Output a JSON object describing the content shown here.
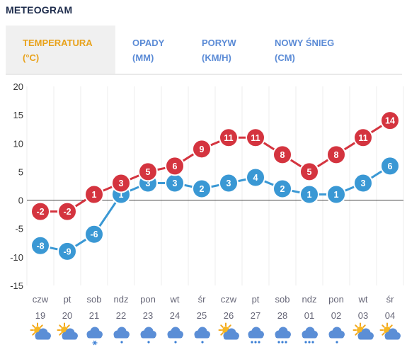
{
  "title": "METEOGRAM",
  "tabs": [
    {
      "label": "TEMPERATURA",
      "unit": "(°C)",
      "active": true
    },
    {
      "label": "OPADY",
      "unit": "(MM)",
      "active": false
    },
    {
      "label": "PORYW",
      "unit": "(KM/H)",
      "active": false
    },
    {
      "label": "NOWY ŚNIEG",
      "unit": "(CM)",
      "active": false
    }
  ],
  "colors": {
    "max": "#d4343f",
    "min": "#3a98d4",
    "tab_active": "#e8a21b",
    "tab": "#5b8bd6"
  },
  "chart_data": {
    "type": "line",
    "ylim": [
      -15,
      20
    ],
    "yticks": [
      20,
      15,
      10,
      5,
      0,
      -5,
      -10,
      -15
    ],
    "days": [
      "czw",
      "pt",
      "sob",
      "ndz",
      "pon",
      "wt",
      "śr",
      "czw",
      "pt",
      "sob",
      "ndz",
      "pon",
      "wt",
      "śr"
    ],
    "dates": [
      "19",
      "20",
      "21",
      "22",
      "23",
      "24",
      "25",
      "26",
      "27",
      "28",
      "01",
      "02",
      "03",
      "04"
    ],
    "series": [
      {
        "values": [
          -2,
          -2,
          1,
          3,
          5,
          6,
          9,
          11,
          11,
          8,
          5,
          8,
          11,
          14
        ],
        "color": "#d4343f"
      },
      {
        "values": [
          -8,
          -9,
          -6,
          1,
          3,
          3,
          2,
          3,
          4,
          2,
          1,
          1,
          3,
          6
        ],
        "color": "#3a98d4"
      }
    ],
    "weather_icons": [
      "partly-sunny-icon",
      "partly-sunny-icon",
      "snow-cloud-icon",
      "rain-cloud-icon",
      "rain-cloud-icon",
      "rain-cloud-icon",
      "rain-cloud-icon",
      "partly-sunny-icon",
      "heavy-rain-cloud-icon",
      "heavy-rain-cloud-icon",
      "heavy-rain-cloud-icon",
      "rain-cloud-icon",
      "partly-sunny-icon",
      "partly-sunny-icon"
    ]
  }
}
